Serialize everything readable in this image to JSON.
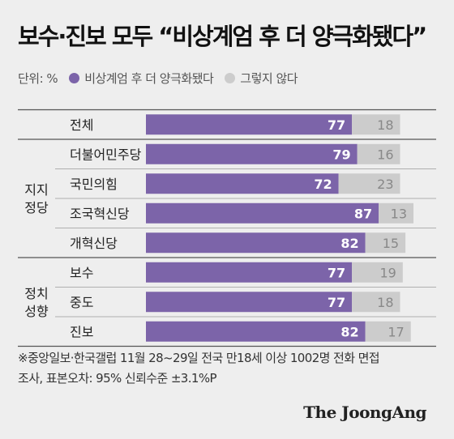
{
  "title": "보수·진보 모두 “비상계엄 후 더 양극화됐다”",
  "legend": {
    "unit": "단위: %",
    "series1": "비상계엄 후 더 양극화됐다",
    "series2": "그렇지 않다"
  },
  "colors": {
    "series1": "#7c64a9",
    "series2": "#cccccc",
    "group_line": "#555555",
    "row_line": "#9a9a9a"
  },
  "chart_data": {
    "type": "bar",
    "orientation": "horizontal",
    "stacked": true,
    "groups": [
      {
        "label": "",
        "categories": [
          "전체"
        ]
      },
      {
        "label": "지지\n정당",
        "categories": [
          "더불어민주당",
          "국민의힘",
          "조국혁신당",
          "개혁신당"
        ]
      },
      {
        "label": "정치\n성향",
        "categories": [
          "보수",
          "중도",
          "진보"
        ]
      }
    ],
    "categories": [
      "전체",
      "더불어민주당",
      "국민의힘",
      "조국혁신당",
      "개혁신당",
      "보수",
      "중도",
      "진보"
    ],
    "series": [
      {
        "name": "비상계엄 후 더 양극화됐다",
        "values": [
          77,
          79,
          72,
          87,
          82,
          77,
          77,
          82
        ]
      },
      {
        "name": "그렇지 않다",
        "values": [
          18,
          16,
          23,
          13,
          15,
          19,
          18,
          17
        ]
      }
    ],
    "xlim": [
      0,
      100
    ],
    "unit": "%"
  },
  "note": {
    "line1": "※중앙일보·한국갤럽 11월 28~29일 전국 만18세 이상 1002명 전화 면접",
    "line2": "조사, 표본오차: 95% 신뢰수준 ±3.1%P"
  },
  "brand": "The JoongAng"
}
